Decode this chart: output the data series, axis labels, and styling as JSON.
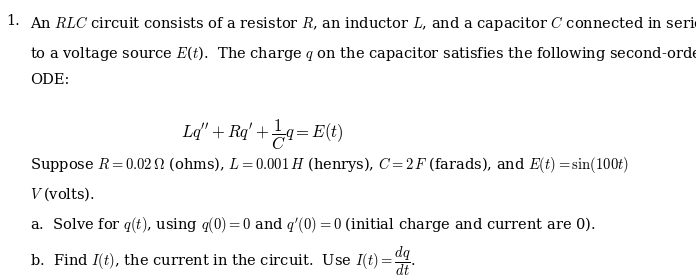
{
  "background_color": "#ffffff",
  "text_color": "#000000",
  "brown_color": "#8B4513",
  "font_size_main": 11,
  "number_text": "1.",
  "line1": "An \\textit{RLC} circuit consists of a resistor \\textit{R}, an inductor \\textit{L}, and a capacitor \\textit{C} connected in series",
  "line2": "to a voltage source \\textit{E}(\\textit{t}).  The charge \\textit{q} on the capacitor satisfies the following second-order",
  "line3": "ODE:",
  "equation": "$Lq'' + Rq' + \\dfrac{1}{C}q = E(t)$",
  "suppose_line1": "Suppose $R = 0.02\\,\\Omega$ (ohms), $L = 0.001\\,H$ (henrys), $C = 2\\,F$ (farads), and $E(t) = \\sin(100t)$",
  "suppose_line2": "$V$ (volts).",
  "part_a": "a.  Solve for $q(t)$, using $q(0) = 0$ and $q'(0) = 0$ (initial charge and current are 0).",
  "part_b_pre": "b.  Find $I(t)$, the current in the circuit.  Use $I(t) = \\dfrac{dq}{dt}$."
}
